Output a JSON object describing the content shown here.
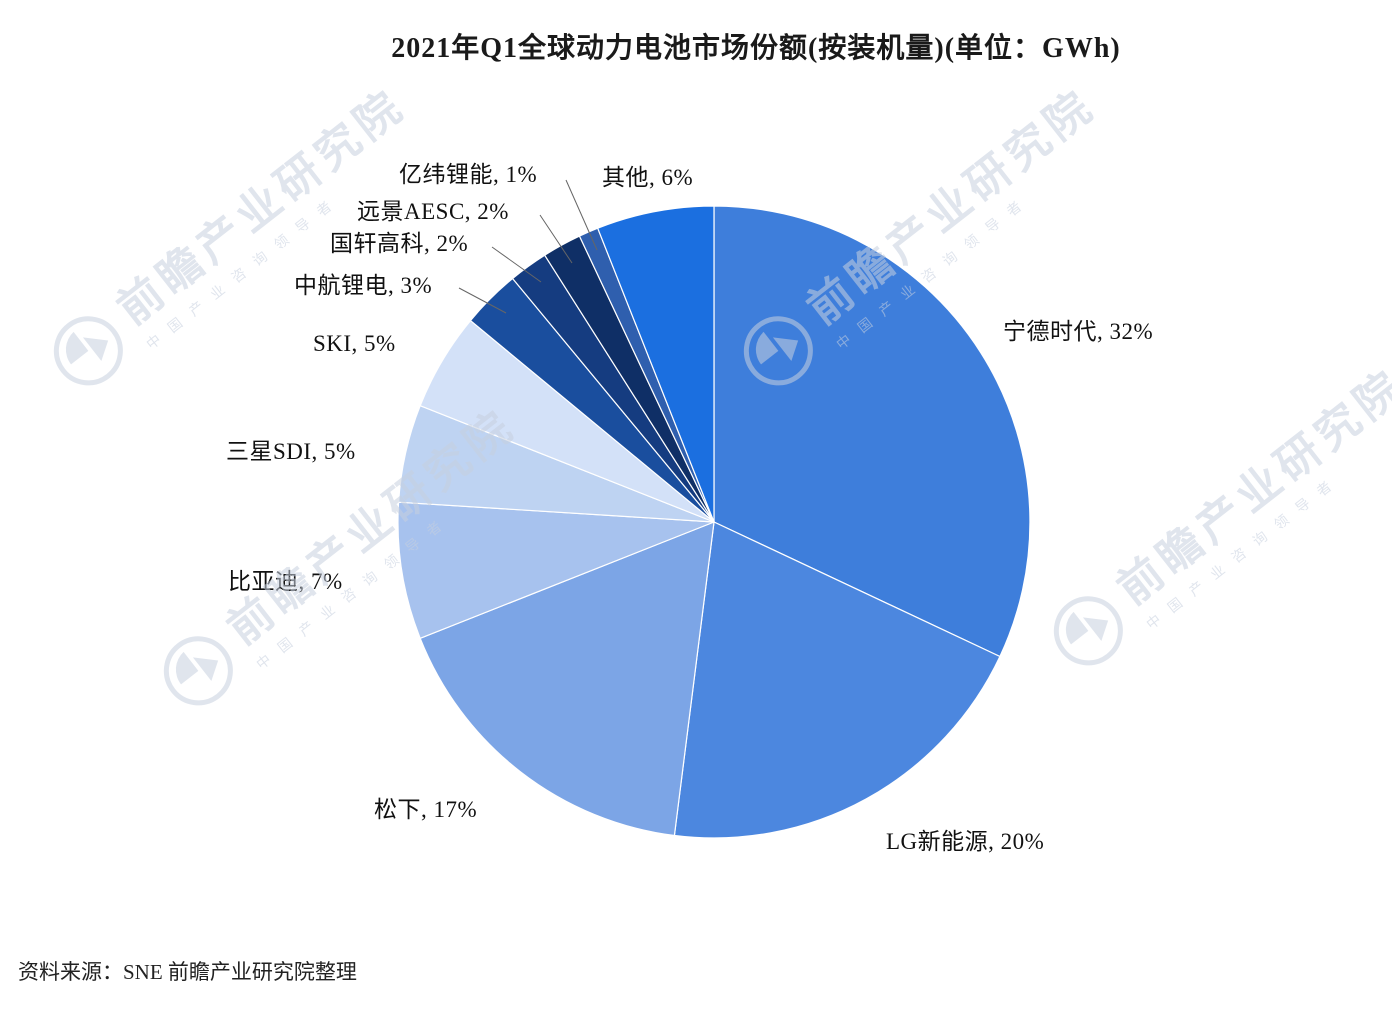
{
  "page": {
    "title": "2021年Q1全球动力电池市场份额(按装机量)(单位：GWh)",
    "source_note": "资料来源：SNE 前瞻产业研究院整理"
  },
  "watermark": {
    "main": "前瞻产业研究院",
    "sub": "中国产业咨询领导者",
    "color": "#c7d0df"
  },
  "chart_data": {
    "type": "pie",
    "title": "2021年Q1全球动力电池市场份额(按装机量)(单位：GWh)",
    "unit": "GWh",
    "direction": "clockwise",
    "start_angle_deg": 0,
    "label_format": "{label}, {value}%",
    "legend_position": "none",
    "slices": [
      {
        "label": "宁德时代",
        "value": 32,
        "color": "#3E7EDB"
      },
      {
        "label": "LG新能源",
        "value": 20,
        "color": "#4C87DF"
      },
      {
        "label": "松下",
        "value": 17,
        "color": "#7CA5E6"
      },
      {
        "label": "比亚迪",
        "value": 7,
        "color": "#A7C2EE"
      },
      {
        "label": "三星SDI",
        "value": 5,
        "color": "#BED3F2"
      },
      {
        "label": "SKI",
        "value": 5,
        "color": "#D3E1F8"
      },
      {
        "label": "中航锂电",
        "value": 3,
        "color": "#1A4E9E"
      },
      {
        "label": "国轩高科",
        "value": 2,
        "color": "#153C80"
      },
      {
        "label": "远景AESC",
        "value": 2,
        "color": "#0F2F66"
      },
      {
        "label": "亿纬锂能",
        "value": 1,
        "color": "#2F5FAE"
      },
      {
        "label": "其他",
        "value": 6,
        "color": "#1B6FE0"
      }
    ]
  }
}
